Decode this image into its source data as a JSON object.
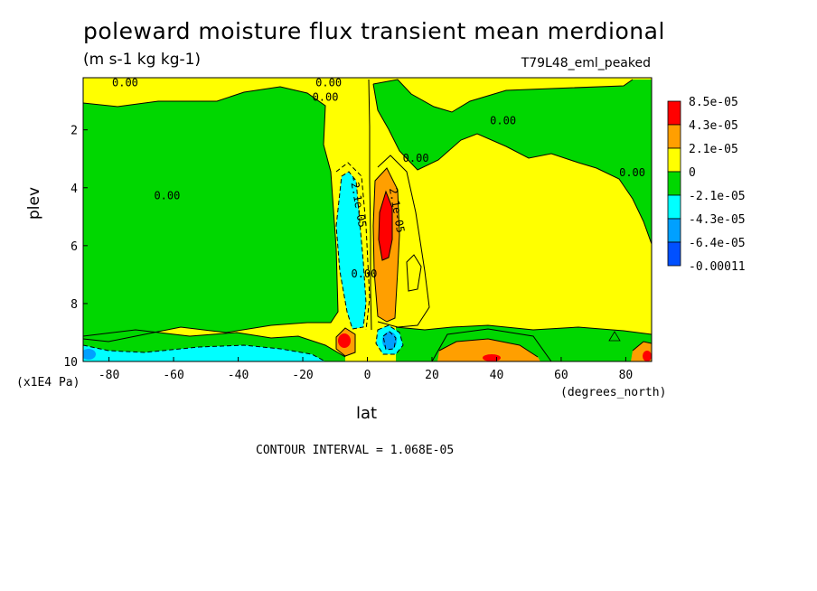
{
  "chart_data": {
    "type": "heatmap",
    "title": "poleward moisture flux transient mean merdional",
    "units": "(m s-1 kg kg-1)",
    "dataset": "T79L48_eml_peaked",
    "xlabel": "lat",
    "x_unit": "(degrees_north)",
    "ylabel": "plev",
    "y_unit": "(x1E4 Pa)",
    "xlim": [
      -88,
      88
    ],
    "ylim": [
      10,
      0.2
    ],
    "x_ticks": [
      -80,
      -60,
      -40,
      -20,
      0,
      20,
      40,
      60,
      80
    ],
    "x_tick_labels": [
      "-80",
      "-60",
      "-40",
      "-20",
      "0",
      "20",
      "40",
      "60",
      "80"
    ],
    "y_ticks": [
      2,
      4,
      6,
      8,
      10
    ],
    "y_tick_labels": [
      "2",
      "4",
      "6",
      "8",
      "10"
    ],
    "contour_interval_text": "CONTOUR INTERVAL = 1.068E-05",
    "colorbar": {
      "labels": [
        "8.5e-05",
        "4.3e-05",
        "2.1e-05",
        "0",
        "-2.1e-05",
        "-4.3e-05",
        "-6.4e-05",
        "-0.00011"
      ],
      "colors": [
        "#ff0000",
        "#ff9f00",
        "#ffff00",
        "#00d700",
        "#00ffff",
        "#00a0ff",
        "#0050ff"
      ]
    },
    "contour_labels": [
      {
        "text": "0.00",
        "lon": -75,
        "lev": 0.5
      },
      {
        "text": "0.00",
        "lon": -12,
        "lev": 0.5
      },
      {
        "text": "0.00",
        "lon": -13,
        "lev": 1.0
      },
      {
        "text": "0.00",
        "lon": 42,
        "lev": 1.8
      },
      {
        "text": "0.00",
        "lon": 15,
        "lev": 3.1
      },
      {
        "text": "0.00",
        "lon": 82,
        "lev": 3.6
      },
      {
        "text": "0.00",
        "lon": -62,
        "lev": 4.4
      },
      {
        "text": "-2.1e-05",
        "lon": -4,
        "lev": 4.5
      },
      {
        "text": "0.00",
        "lon": -1,
        "lev": 7.1
      },
      {
        "text": "2.1e-05",
        "lon": 8,
        "lev": 4.8
      }
    ]
  }
}
